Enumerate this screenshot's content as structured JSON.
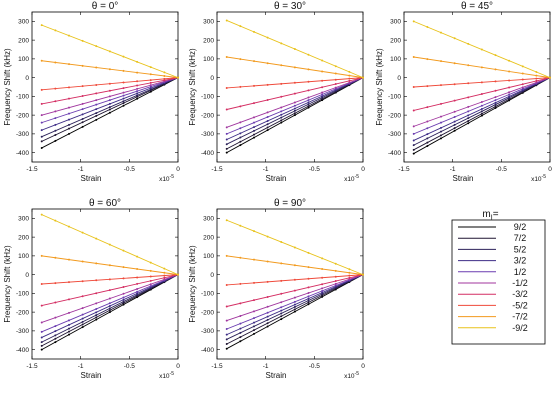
{
  "chart_data": [
    {
      "type": "line",
      "title": "θ = 0°",
      "xlabel": "Strain",
      "ylabel": "Frequency Shift (kHz)",
      "x_multiplier": "x10",
      "x_multiplier_exp": "-5",
      "xlim": [
        -1.5,
        0
      ],
      "ylim": [
        -450,
        350
      ],
      "xticks": [
        "-1.5",
        "-1",
        "-0.5",
        "0"
      ],
      "yticks": [
        "300",
        "200",
        "100",
        "0",
        "-100",
        "-200",
        "-300",
        "-400"
      ],
      "series": [
        {
          "name": "9/2",
          "color": "#000000",
          "x": [
            -1.4,
            0
          ],
          "y": [
            -375,
            0
          ]
        },
        {
          "name": "7/2",
          "color": "#1e1430",
          "x": [
            -1.4,
            0
          ],
          "y": [
            -340,
            0
          ]
        },
        {
          "name": "5/2",
          "color": "#2b2159",
          "x": [
            -1.4,
            0
          ],
          "y": [
            -315,
            0
          ]
        },
        {
          "name": "3/2",
          "color": "#3d2c86",
          "x": [
            -1.4,
            0
          ],
          "y": [
            -280,
            0
          ]
        },
        {
          "name": "1/2",
          "color": "#6a3cb0",
          "x": [
            -1.4,
            0
          ],
          "y": [
            -240,
            0
          ]
        },
        {
          "name": "-1/2",
          "color": "#a0369e",
          "x": [
            -1.4,
            0
          ],
          "y": [
            -200,
            0
          ]
        },
        {
          "name": "-3/2",
          "color": "#d42e63",
          "x": [
            -1.4,
            0
          ],
          "y": [
            -140,
            0
          ]
        },
        {
          "name": "-5/2",
          "color": "#ef4a3a",
          "x": [
            -1.4,
            0
          ],
          "y": [
            -65,
            0
          ]
        },
        {
          "name": "-7/2",
          "color": "#f29a1e",
          "x": [
            -1.4,
            0
          ],
          "y": [
            90,
            0
          ]
        },
        {
          "name": "-9/2",
          "color": "#e8c21a",
          "x": [
            -1.4,
            0
          ],
          "y": [
            280,
            0
          ]
        }
      ]
    },
    {
      "type": "line",
      "title": "θ = 30°",
      "xlabel": "Strain",
      "ylabel": "Frequency Shift (kHz)",
      "x_multiplier": "x10",
      "x_multiplier_exp": "-5",
      "xlim": [
        -1.5,
        0
      ],
      "ylim": [
        -450,
        350
      ],
      "xticks": [
        "-1.5",
        "-1",
        "-0.5",
        "0"
      ],
      "yticks": [
        "300",
        "200",
        "100",
        "0",
        "-100",
        "-200",
        "-300",
        "-400"
      ],
      "series": [
        {
          "name": "9/2",
          "color": "#000000",
          "x": [
            -1.4,
            0
          ],
          "y": [
            -400,
            0
          ]
        },
        {
          "name": "7/2",
          "color": "#1e1430",
          "x": [
            -1.4,
            0
          ],
          "y": [
            -380,
            0
          ]
        },
        {
          "name": "5/2",
          "color": "#2b2159",
          "x": [
            -1.4,
            0
          ],
          "y": [
            -355,
            0
          ]
        },
        {
          "name": "3/2",
          "color": "#3d2c86",
          "x": [
            -1.4,
            0
          ],
          "y": [
            -330,
            0
          ]
        },
        {
          "name": "1/2",
          "color": "#6a3cb0",
          "x": [
            -1.4,
            0
          ],
          "y": [
            -300,
            0
          ]
        },
        {
          "name": "-1/2",
          "color": "#a0369e",
          "x": [
            -1.4,
            0
          ],
          "y": [
            -265,
            0
          ]
        },
        {
          "name": "-3/2",
          "color": "#d42e63",
          "x": [
            -1.4,
            0
          ],
          "y": [
            -170,
            0
          ]
        },
        {
          "name": "-5/2",
          "color": "#ef4a3a",
          "x": [
            -1.4,
            0
          ],
          "y": [
            -55,
            0
          ]
        },
        {
          "name": "-7/2",
          "color": "#f29a1e",
          "x": [
            -1.4,
            0
          ],
          "y": [
            110,
            0
          ]
        },
        {
          "name": "-9/2",
          "color": "#e8c21a",
          "x": [
            -1.4,
            0
          ],
          "y": [
            305,
            0
          ]
        }
      ]
    },
    {
      "type": "line",
      "title": "θ = 45°",
      "xlabel": "Strain",
      "ylabel": "Frequency Shift (kHz)",
      "x_multiplier": "x10",
      "x_multiplier_exp": "-5",
      "xlim": [
        -1.5,
        0
      ],
      "ylim": [
        -450,
        350
      ],
      "xticks": [
        "-1.5",
        "-1",
        "-0.5",
        "0"
      ],
      "yticks": [
        "300",
        "200",
        "100",
        "0",
        "-100",
        "-200",
        "-300",
        "-400"
      ],
      "series": [
        {
          "name": "9/2",
          "color": "#000000",
          "x": [
            -1.4,
            0
          ],
          "y": [
            -405,
            0
          ]
        },
        {
          "name": "7/2",
          "color": "#1e1430",
          "x": [
            -1.4,
            0
          ],
          "y": [
            -385,
            0
          ]
        },
        {
          "name": "5/2",
          "color": "#2b2159",
          "x": [
            -1.4,
            0
          ],
          "y": [
            -360,
            0
          ]
        },
        {
          "name": "3/2",
          "color": "#3d2c86",
          "x": [
            -1.4,
            0
          ],
          "y": [
            -335,
            0
          ]
        },
        {
          "name": "1/2",
          "color": "#6a3cb0",
          "x": [
            -1.4,
            0
          ],
          "y": [
            -300,
            0
          ]
        },
        {
          "name": "-1/2",
          "color": "#a0369e",
          "x": [
            -1.4,
            0
          ],
          "y": [
            -260,
            0
          ]
        },
        {
          "name": "-3/2",
          "color": "#d42e63",
          "x": [
            -1.4,
            0
          ],
          "y": [
            -175,
            0
          ]
        },
        {
          "name": "-5/2",
          "color": "#ef4a3a",
          "x": [
            -1.4,
            0
          ],
          "y": [
            -50,
            0
          ]
        },
        {
          "name": "-7/2",
          "color": "#f29a1e",
          "x": [
            -1.4,
            0
          ],
          "y": [
            110,
            0
          ]
        },
        {
          "name": "-9/2",
          "color": "#e8c21a",
          "x": [
            -1.4,
            0
          ],
          "y": [
            300,
            0
          ]
        }
      ]
    },
    {
      "type": "line",
      "title": "θ = 60°",
      "xlabel": "Strain",
      "ylabel": "Frequency Shift (kHz)",
      "x_multiplier": "x10",
      "x_multiplier_exp": "-5",
      "xlim": [
        -1.5,
        0
      ],
      "ylim": [
        -450,
        350
      ],
      "xticks": [
        "-1.5",
        "-1",
        "-0.5",
        "0"
      ],
      "yticks": [
        "300",
        "200",
        "100",
        "0",
        "-100",
        "-200",
        "-300",
        "-400"
      ],
      "series": [
        {
          "name": "9/2",
          "color": "#000000",
          "x": [
            -1.4,
            0
          ],
          "y": [
            -400,
            0
          ]
        },
        {
          "name": "7/2",
          "color": "#1e1430",
          "x": [
            -1.4,
            0
          ],
          "y": [
            -380,
            0
          ]
        },
        {
          "name": "5/2",
          "color": "#2b2159",
          "x": [
            -1.4,
            0
          ],
          "y": [
            -360,
            0
          ]
        },
        {
          "name": "3/2",
          "color": "#3d2c86",
          "x": [
            -1.4,
            0
          ],
          "y": [
            -335,
            0
          ]
        },
        {
          "name": "1/2",
          "color": "#6a3cb0",
          "x": [
            -1.4,
            0
          ],
          "y": [
            -305,
            0
          ]
        },
        {
          "name": "-1/2",
          "color": "#a0369e",
          "x": [
            -1.4,
            0
          ],
          "y": [
            -255,
            0
          ]
        },
        {
          "name": "-3/2",
          "color": "#d42e63",
          "x": [
            -1.4,
            0
          ],
          "y": [
            -165,
            0
          ]
        },
        {
          "name": "-5/2",
          "color": "#ef4a3a",
          "x": [
            -1.4,
            0
          ],
          "y": [
            -50,
            0
          ]
        },
        {
          "name": "-7/2",
          "color": "#f29a1e",
          "x": [
            -1.4,
            0
          ],
          "y": [
            100,
            0
          ]
        },
        {
          "name": "-9/2",
          "color": "#e8c21a",
          "x": [
            -1.4,
            0
          ],
          "y": [
            320,
            0
          ]
        }
      ]
    },
    {
      "type": "line",
      "title": "θ = 90°",
      "xlabel": "Strain",
      "ylabel": "Frequency Shift (kHz)",
      "x_multiplier": "x10",
      "x_multiplier_exp": "-5",
      "xlim": [
        -1.5,
        0
      ],
      "ylim": [
        -450,
        350
      ],
      "xticks": [
        "-1.5",
        "-1",
        "-0.5",
        "0"
      ],
      "yticks": [
        "300",
        "200",
        "100",
        "0",
        "-100",
        "-200",
        "-300",
        "-400"
      ],
      "series": [
        {
          "name": "9/2",
          "color": "#000000",
          "x": [
            -1.4,
            0
          ],
          "y": [
            -395,
            0
          ]
        },
        {
          "name": "7/2",
          "color": "#1e1430",
          "x": [
            -1.4,
            0
          ],
          "y": [
            -370,
            0
          ]
        },
        {
          "name": "5/2",
          "color": "#2b2159",
          "x": [
            -1.4,
            0
          ],
          "y": [
            -345,
            0
          ]
        },
        {
          "name": "3/2",
          "color": "#3d2c86",
          "x": [
            -1.4,
            0
          ],
          "y": [
            -320,
            0
          ]
        },
        {
          "name": "1/2",
          "color": "#6a3cb0",
          "x": [
            -1.4,
            0
          ],
          "y": [
            -290,
            0
          ]
        },
        {
          "name": "-1/2",
          "color": "#a0369e",
          "x": [
            -1.4,
            0
          ],
          "y": [
            -245,
            0
          ]
        },
        {
          "name": "-3/2",
          "color": "#d42e63",
          "x": [
            -1.4,
            0
          ],
          "y": [
            -170,
            0
          ]
        },
        {
          "name": "-5/2",
          "color": "#ef4a3a",
          "x": [
            -1.4,
            0
          ],
          "y": [
            -55,
            0
          ]
        },
        {
          "name": "-7/2",
          "color": "#f29a1e",
          "x": [
            -1.4,
            0
          ],
          "y": [
            100,
            0
          ]
        },
        {
          "name": "-9/2",
          "color": "#e8c21a",
          "x": [
            -1.4,
            0
          ],
          "y": [
            290,
            0
          ]
        }
      ]
    }
  ],
  "legend": {
    "title": "m",
    "title_subscript": "I",
    "title_suffix": "=",
    "placement": "bottom-right",
    "entries": [
      {
        "label": "9/2",
        "color": "#000000"
      },
      {
        "label": "7/2",
        "color": "#1e1430"
      },
      {
        "label": "5/2",
        "color": "#2b2159"
      },
      {
        "label": "3/2",
        "color": "#3d2c86"
      },
      {
        "label": "1/2",
        "color": "#6a3cb0"
      },
      {
        "label": "-1/2",
        "color": "#a0369e"
      },
      {
        "label": "-3/2",
        "color": "#d42e63"
      },
      {
        "label": "-5/2",
        "color": "#ef4a3a"
      },
      {
        "label": "-7/2",
        "color": "#f29a1e"
      },
      {
        "label": "-9/2",
        "color": "#e8c21a"
      }
    ]
  }
}
